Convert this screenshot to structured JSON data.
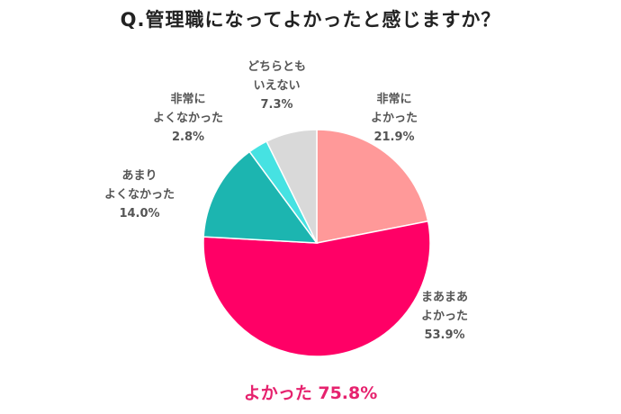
{
  "title": "Q.管理職になってよかったと感じますか？",
  "summary": {
    "text": "よかった 75.8%",
    "color": "#e6226e"
  },
  "chart_data": {
    "type": "pie",
    "title": "Q.管理職になってよかったと感じますか？",
    "start_angle_deg": 0,
    "direction": "clockwise",
    "slices": [
      {
        "label": [
          "非常に",
          "よかった"
        ],
        "value": 21.9,
        "value_text": "21.9%",
        "color": "#ff9999"
      },
      {
        "label": [
          "まあまあ",
          "よかった"
        ],
        "value": 53.9,
        "value_text": "53.9%",
        "color": "#ff0066"
      },
      {
        "label": [
          "あまり",
          "よくなかった"
        ],
        "value": 14.0,
        "value_text": "14.0%",
        "color": "#1cb5b0"
      },
      {
        "label": [
          "非常に",
          "よくなかった"
        ],
        "value": 2.8,
        "value_text": "2.8%",
        "color": "#46e2e2"
      },
      {
        "label": [
          "どちらとも",
          "いえない"
        ],
        "value": 7.3,
        "value_text": "7.3%",
        "color": "#d9d9d9"
      }
    ]
  }
}
